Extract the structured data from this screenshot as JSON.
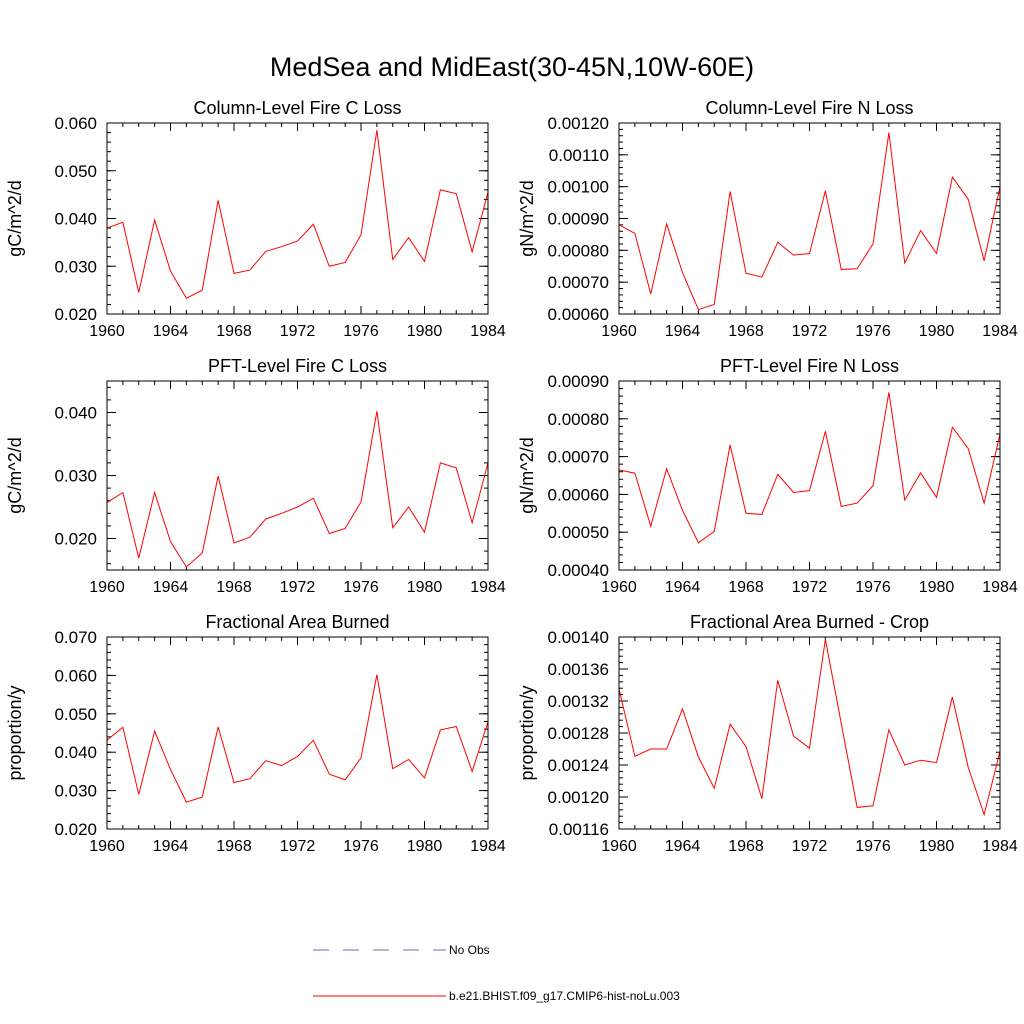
{
  "figure": {
    "title": "MedSea and MidEast(30-45N,10W-60E)"
  },
  "legend": {
    "entries": [
      {
        "label": "No Obs",
        "color": "#6b6bb0",
        "style": "dashed"
      },
      {
        "label": "b.e21.BHIST.f09_g17.CMIP6-hist-noLu.003",
        "color": "#ff0000",
        "style": "solid"
      }
    ]
  },
  "chart_data": [
    {
      "type": "line",
      "title": "Column-Level Fire C Loss",
      "ylabel": "gC/m^2/d",
      "xlim": [
        1960,
        1984
      ],
      "ylim": [
        0.02,
        0.06
      ],
      "xticks": [
        "1960",
        "1964",
        "1968",
        "1972",
        "1976",
        "1980",
        "1984"
      ],
      "yticks": [
        "0.020",
        "0.030",
        "0.040",
        "0.050",
        "0.060"
      ],
      "x": [
        1960,
        1961,
        1962,
        1963,
        1964,
        1965,
        1966,
        1967,
        1968,
        1969,
        1970,
        1971,
        1972,
        1973,
        1974,
        1975,
        1976,
        1977,
        1978,
        1979,
        1980,
        1981,
        1982,
        1983,
        1984
      ],
      "series": [
        {
          "values": [
            0.038,
            0.0392,
            0.0245,
            0.0397,
            0.029,
            0.0233,
            0.025,
            0.0438,
            0.0285,
            0.0292,
            0.0331,
            0.0341,
            0.0353,
            0.0388,
            0.03,
            0.0308,
            0.0366,
            0.0585,
            0.0314,
            0.036,
            0.031,
            0.046,
            0.0452,
            0.033,
            0.0455
          ],
          "color": "#ff0000"
        }
      ]
    },
    {
      "type": "line",
      "title": "Column-Level Fire N Loss",
      "ylabel": "gN/m^2/d",
      "xlim": [
        1960,
        1984
      ],
      "ylim": [
        0.0006,
        0.0012
      ],
      "xticks": [
        "1960",
        "1964",
        "1968",
        "1972",
        "1976",
        "1980",
        "1984"
      ],
      "yticks": [
        "0.00060",
        "0.00070",
        "0.00080",
        "0.00090",
        "0.00100",
        "0.00110",
        "0.00120"
      ],
      "x": [
        1960,
        1961,
        1962,
        1963,
        1964,
        1965,
        1966,
        1967,
        1968,
        1969,
        1970,
        1971,
        1972,
        1973,
        1974,
        1975,
        1976,
        1977,
        1978,
        1979,
        1980,
        1981,
        1982,
        1983,
        1984
      ],
      "series": [
        {
          "values": [
            0.00088,
            0.000853,
            0.000663,
            0.000883,
            0.00073,
            0.000614,
            0.00063,
            0.000985,
            0.000728,
            0.000716,
            0.000825,
            0.000785,
            0.00079,
            0.000987,
            0.00074,
            0.000742,
            0.00082,
            0.00117,
            0.00076,
            0.000862,
            0.00079,
            0.00103,
            0.00096,
            0.000767,
            0.001
          ],
          "color": "#ff0000"
        }
      ]
    },
    {
      "type": "line",
      "title": "PFT-Level Fire C Loss",
      "ylabel": "gC/m^2/d",
      "xlim": [
        1960,
        1984
      ],
      "ylim": [
        0.015,
        0.045
      ],
      "xticks": [
        "1960",
        "1964",
        "1968",
        "1972",
        "1976",
        "1980",
        "1984"
      ],
      "yticks": [
        "0.020",
        "0.030",
        "0.040"
      ],
      "x": [
        1960,
        1961,
        1962,
        1963,
        1964,
        1965,
        1966,
        1967,
        1968,
        1969,
        1970,
        1971,
        1972,
        1973,
        1974,
        1975,
        1976,
        1977,
        1978,
        1979,
        1980,
        1981,
        1982,
        1983,
        1984
      ],
      "series": [
        {
          "values": [
            0.0257,
            0.0273,
            0.0169,
            0.0273,
            0.0195,
            0.0155,
            0.0177,
            0.0299,
            0.0193,
            0.0202,
            0.0231,
            0.024,
            0.025,
            0.0264,
            0.0208,
            0.0216,
            0.0258,
            0.0402,
            0.0217,
            0.025,
            0.021,
            0.032,
            0.0312,
            0.0225,
            0.032
          ],
          "color": "#ff0000"
        }
      ]
    },
    {
      "type": "line",
      "title": "PFT-Level Fire N Loss",
      "ylabel": "gN/m^2/d",
      "xlim": [
        1960,
        1984
      ],
      "ylim": [
        0.0004,
        0.0009
      ],
      "xticks": [
        "1960",
        "1964",
        "1968",
        "1972",
        "1976",
        "1980",
        "1984"
      ],
      "yticks": [
        "0.00040",
        "0.00050",
        "0.00060",
        "0.00070",
        "0.00080",
        "0.00090"
      ],
      "x": [
        1960,
        1961,
        1962,
        1963,
        1964,
        1965,
        1966,
        1967,
        1968,
        1969,
        1970,
        1971,
        1972,
        1973,
        1974,
        1975,
        1976,
        1977,
        1978,
        1979,
        1980,
        1981,
        1982,
        1983,
        1984
      ],
      "series": [
        {
          "values": [
            0.000665,
            0.000656,
            0.000516,
            0.000668,
            0.000558,
            0.000472,
            0.000502,
            0.000731,
            0.00055,
            0.000547,
            0.000653,
            0.000605,
            0.00061,
            0.000767,
            0.000568,
            0.000577,
            0.000623,
            0.00087,
            0.000585,
            0.000657,
            0.000592,
            0.000778,
            0.000721,
            0.000577,
            0.00076
          ],
          "color": "#ff0000"
        }
      ]
    },
    {
      "type": "line",
      "title": "Fractional Area Burned",
      "ylabel": "proportion/y",
      "xlim": [
        1960,
        1984
      ],
      "ylim": [
        0.02,
        0.07
      ],
      "xticks": [
        "1960",
        "1964",
        "1968",
        "1972",
        "1976",
        "1980",
        "1984"
      ],
      "yticks": [
        "0.020",
        "0.030",
        "0.040",
        "0.050",
        "0.060",
        "0.070"
      ],
      "x": [
        1960,
        1961,
        1962,
        1963,
        1964,
        1965,
        1966,
        1967,
        1968,
        1969,
        1970,
        1971,
        1972,
        1973,
        1974,
        1975,
        1976,
        1977,
        1978,
        1979,
        1980,
        1981,
        1982,
        1983,
        1984
      ],
      "series": [
        {
          "values": [
            0.0431,
            0.0465,
            0.029,
            0.0455,
            0.0355,
            0.027,
            0.0283,
            0.0466,
            0.0321,
            0.0331,
            0.0378,
            0.0365,
            0.0389,
            0.0431,
            0.0343,
            0.0328,
            0.0385,
            0.0602,
            0.0357,
            0.0381,
            0.0333,
            0.0458,
            0.0467,
            0.035,
            0.0479
          ],
          "color": "#ff0000"
        }
      ]
    },
    {
      "type": "line",
      "title": "Fractional Area Burned - Crop",
      "ylabel": "proportion/y",
      "xlim": [
        1960,
        1984
      ],
      "ylim": [
        0.00116,
        0.0014
      ],
      "xticks": [
        "1960",
        "1964",
        "1968",
        "1972",
        "1976",
        "1980",
        "1984"
      ],
      "yticks": [
        "0.00116",
        "0.00120",
        "0.00124",
        "0.00128",
        "0.00132",
        "0.00136",
        "0.00140"
      ],
      "x": [
        1960,
        1961,
        1962,
        1963,
        1964,
        1965,
        1966,
        1967,
        1968,
        1969,
        1970,
        1971,
        1972,
        1973,
        1974,
        1975,
        1976,
        1977,
        1978,
        1979,
        1980,
        1981,
        1982,
        1983,
        1984
      ],
      "series": [
        {
          "values": [
            0.001335,
            0.001251,
            0.00126,
            0.00126,
            0.00131,
            0.00125,
            0.001211,
            0.001291,
            0.001263,
            0.001198,
            0.001346,
            0.001276,
            0.001261,
            0.001397,
            0.001292,
            0.001187,
            0.001189,
            0.001284,
            0.00124,
            0.001246,
            0.001243,
            0.001325,
            0.001237,
            0.001178,
            0.001257
          ],
          "color": "#ff0000"
        }
      ]
    }
  ]
}
